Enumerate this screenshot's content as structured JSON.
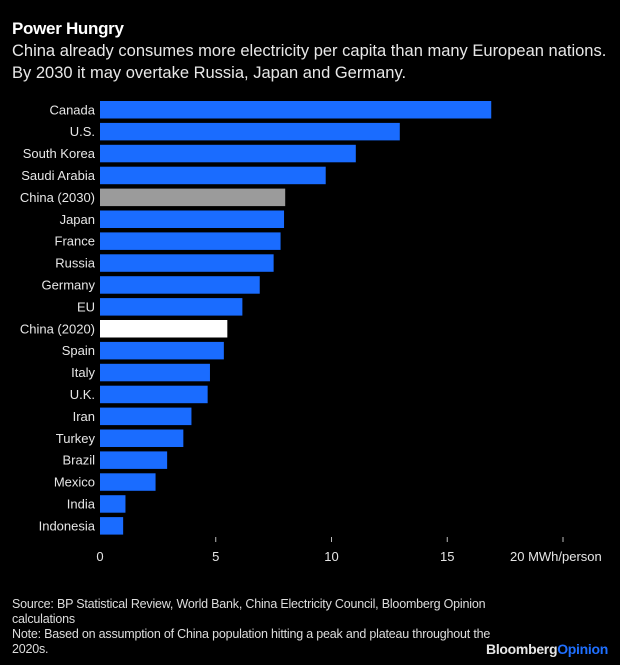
{
  "chart_data": {
    "type": "bar",
    "orientation": "horizontal",
    "title": "Power Hungry",
    "subtitle": "China already consumes more electricity per capita than many European nations. By 2030 it may overtake Russia, Japan and Germany.",
    "xlabel": "MWh/person",
    "ylabel": "",
    "xlim": [
      0,
      20
    ],
    "xticks": [
      0,
      5,
      10,
      15,
      20
    ],
    "xtick_labels": [
      "0",
      "5",
      "10",
      "15",
      "20 MWh/person"
    ],
    "grid": false,
    "legend": "none",
    "categories": [
      "Canada",
      "U.S.",
      "South Korea",
      "Saudi Arabia",
      "China (2030)",
      "Japan",
      "France",
      "Russia",
      "Germany",
      "EU",
      "China (2020)",
      "Spain",
      "Italy",
      "U.K.",
      "Iran",
      "Turkey",
      "Brazil",
      "Mexico",
      "India",
      "Indonesia"
    ],
    "values": [
      16.9,
      12.95,
      11.05,
      9.75,
      8.0,
      7.95,
      7.8,
      7.5,
      6.9,
      6.15,
      5.5,
      5.35,
      4.75,
      4.65,
      3.95,
      3.6,
      2.9,
      2.4,
      1.1,
      1.0
    ],
    "bar_colors": [
      "#1a6cff",
      "#1a6cff",
      "#1a6cff",
      "#1a6cff",
      "#9b9b9b",
      "#1a6cff",
      "#1a6cff",
      "#1a6cff",
      "#1a6cff",
      "#1a6cff",
      "#ffffff",
      "#1a6cff",
      "#1a6cff",
      "#1a6cff",
      "#1a6cff",
      "#1a6cff",
      "#1a6cff",
      "#1a6cff",
      "#1a6cff",
      "#1a6cff"
    ]
  },
  "colors": {
    "background": "#000000",
    "default_bar": "#1a6cff",
    "highlight_2030": "#9b9b9b",
    "highlight_2020": "#ffffff",
    "brand_accent": "#1f6fff"
  },
  "footer": {
    "source": "Source: BP Statistical Review, World Bank, China Electricity Council, Bloomberg Opinion calculations",
    "note": "Note: Based on assumption of China population hitting a peak and plateau throughout the 2020s."
  },
  "brand": {
    "part1": "Bloomberg",
    "part2": "Opinion"
  }
}
